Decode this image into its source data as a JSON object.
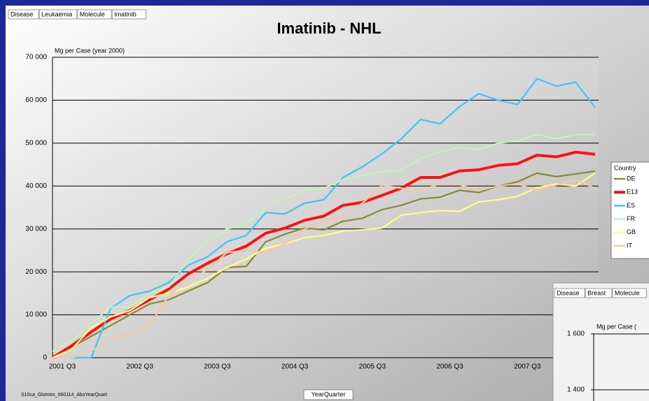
{
  "chart_data": {
    "type": "line",
    "title": "Imatinib - NHL",
    "filters": [
      "Disease",
      "Leukaemia",
      "Molecule",
      "Imatinib"
    ],
    "y_axis_label": "Mg per Case (year 2000)",
    "x_axis_label": "YearQuarter",
    "footnote": "S10ca_GloIntro_060114_AbsYearQuart",
    "legend_title": "Country",
    "categories": [
      "2001 Q3",
      null,
      null,
      null,
      "2002 Q3",
      null,
      null,
      null,
      "2003 Q3",
      null,
      null,
      null,
      "2004 Q3",
      null,
      null,
      null,
      "2005 Q3",
      null,
      null,
      null,
      "2006 Q3",
      null,
      null,
      null,
      "2007 Q3",
      null,
      null,
      null,
      null
    ],
    "ylim": [
      0,
      70000
    ],
    "yticks": [
      0,
      {
        "value": 10000,
        "label": "10 000"
      },
      {
        "value": 20000,
        "label": "20 000"
      },
      {
        "value": 30000,
        "label": "30 000"
      },
      {
        "value": 40000,
        "label": "40 000"
      },
      {
        "value": 50000,
        "label": "50 000"
      },
      {
        "value": 60000,
        "label": "60 000"
      },
      {
        "value": 70000,
        "label": "70 000"
      }
    ],
    "grid": true,
    "legend": "right",
    "series": [
      {
        "name": "DE",
        "color": "#8a8a2c",
        "values": [
          0,
          2500,
          5000,
          7500,
          10000,
          12500,
          13500,
          15500,
          17500,
          21000,
          21300,
          27000,
          28800,
          30200,
          29800,
          31800,
          32500,
          34500,
          35500,
          37000,
          37400,
          39000,
          38500,
          40000,
          41000,
          43000,
          42200,
          42800,
          43500
        ]
      },
      {
        "name": "E13",
        "color": "#ff1010",
        "values": [
          0,
          2800,
          6000,
          9000,
          11000,
          13500,
          16000,
          19500,
          22000,
          24200,
          26000,
          29000,
          30200,
          32000,
          33000,
          35500,
          36200,
          37800,
          39500,
          42000,
          42000,
          43500,
          43800,
          44800,
          45200,
          47200,
          46800,
          47900,
          47400
        ]
      },
      {
        "name": "ES",
        "color": "#3ec6f2",
        "values": [
          0,
          0,
          0,
          11500,
          14500,
          15500,
          17500,
          21500,
          23500,
          27000,
          28500,
          33800,
          33500,
          36000,
          36800,
          42000,
          44500,
          47500,
          51000,
          55500,
          54500,
          58500,
          61500,
          60000,
          59000,
          65000,
          63300,
          64200,
          58300
        ]
      },
      {
        "name": "FR",
        "color": "#c2f2bd",
        "values": [
          1500,
          4000,
          8000,
          11800,
          11800,
          15000,
          16500,
          23000,
          27000,
          30000,
          31000,
          35000,
          37000,
          39000,
          39500,
          41500,
          42500,
          43300,
          43700,
          46500,
          48000,
          49000,
          48500,
          50000,
          50500,
          52000,
          51000,
          52000,
          52000
        ]
      },
      {
        "name": "GB",
        "color": "#ffff80",
        "values": [
          0,
          2000,
          7000,
          9500,
          11000,
          14000,
          15000,
          16500,
          18500,
          21000,
          23000,
          25500,
          26500,
          28000,
          28500,
          29500,
          29800,
          30200,
          33200,
          33800,
          34300,
          34100,
          36300,
          36800,
          37600,
          39600,
          40500,
          40000,
          43000
        ]
      },
      {
        "name": "IT",
        "color": "#f5c8a0",
        "values": [
          0,
          0,
          1500,
          4500,
          5800,
          7500,
          14500,
          18000,
          20500,
          24500,
          25000,
          24500,
          26500,
          30000,
          31800,
          33200,
          36000,
          40200,
          39500,
          39000,
          40500,
          40300,
          39000,
          40000,
          40500,
          39000,
          40200,
          41500,
          39500
        ]
      }
    ]
  },
  "inset": {
    "filters": [
      "Disease",
      "Breast",
      "Molecule"
    ],
    "y_axis_label": "Mg per Case (",
    "yticks": [
      {
        "value": 1600,
        "label": "1 600"
      },
      {
        "value": 1400,
        "label": "1 400"
      }
    ]
  }
}
